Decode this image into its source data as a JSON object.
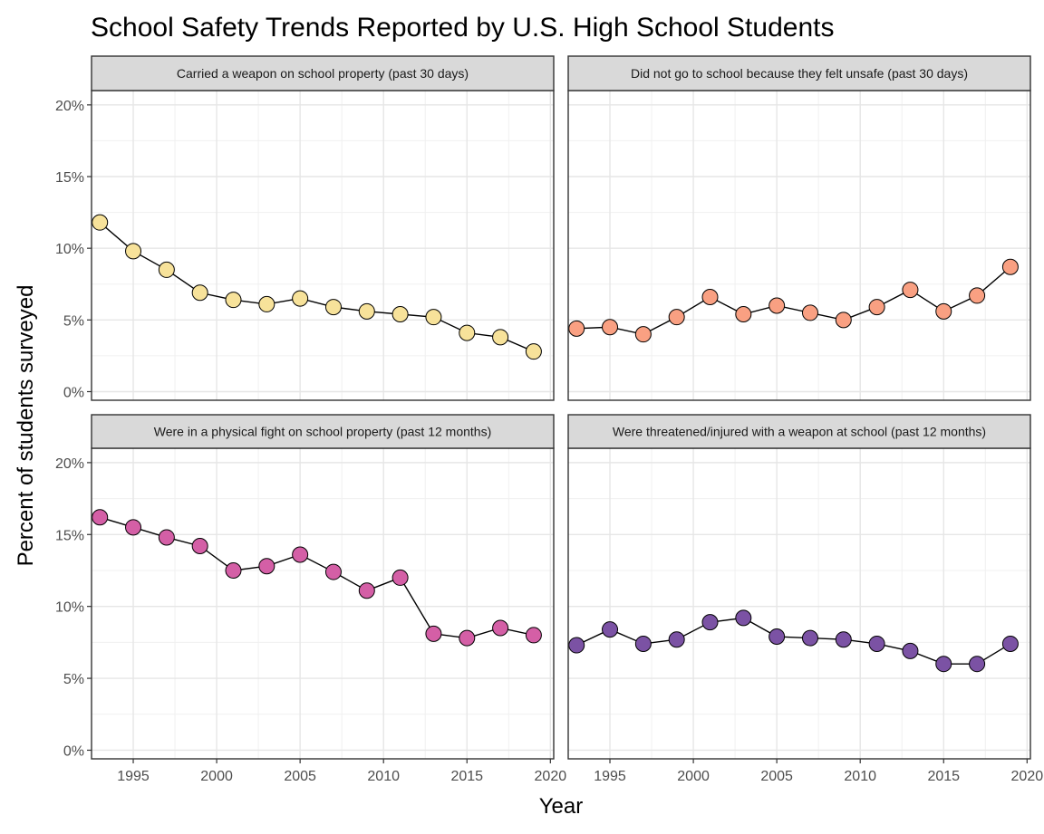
{
  "chart_data": {
    "type": "line",
    "title": "School Safety Trends Reported by U.S. High School Students",
    "xlabel": "Year",
    "ylabel": "Percent of students surveyed",
    "x": [
      1993,
      1995,
      1997,
      1999,
      2001,
      2003,
      2005,
      2007,
      2009,
      2011,
      2013,
      2015,
      2017,
      2019
    ],
    "xlim": [
      1992.5,
      2020.2
    ],
    "ylim": [
      -0.6,
      21
    ],
    "x_ticks": [
      1995,
      2000,
      2005,
      2010,
      2015,
      2020
    ],
    "x_tick_labels": [
      "1995",
      "2000",
      "2005",
      "2010",
      "2015",
      "2020"
    ],
    "y_ticks": [
      0,
      5,
      10,
      15,
      20
    ],
    "y_tick_labels": [
      "0%",
      "5%",
      "10%",
      "15%",
      "20%"
    ],
    "grid": true,
    "legend": "none",
    "facets": [
      {
        "label": "Carried a weapon on school property (past 30 days)",
        "color": "#F7E29A",
        "values": [
          11.8,
          9.8,
          8.5,
          6.9,
          6.4,
          6.1,
          6.5,
          5.9,
          5.6,
          5.4,
          5.2,
          4.1,
          3.8,
          2.8
        ]
      },
      {
        "label": "Did not go to school because they felt unsafe (past 30 days)",
        "color": "#F9A082",
        "values": [
          4.4,
          4.5,
          4.0,
          5.2,
          6.6,
          5.4,
          6.0,
          5.5,
          5.0,
          5.9,
          7.1,
          5.6,
          6.7,
          8.7
        ]
      },
      {
        "label": "Were in a physical fight on school property (past 12 months)",
        "color": "#D45FA6",
        "values": [
          16.2,
          15.5,
          14.8,
          14.2,
          12.5,
          12.8,
          13.6,
          12.4,
          11.1,
          12.0,
          8.1,
          7.8,
          8.5,
          8.0
        ]
      },
      {
        "label": "Were threatened/injured with a weapon at school (past 12 months)",
        "color": "#7B52A4",
        "values": [
          7.3,
          8.4,
          7.4,
          7.7,
          8.9,
          9.2,
          7.9,
          7.8,
          7.7,
          7.4,
          6.9,
          6.0,
          6.0,
          7.4
        ]
      }
    ]
  }
}
